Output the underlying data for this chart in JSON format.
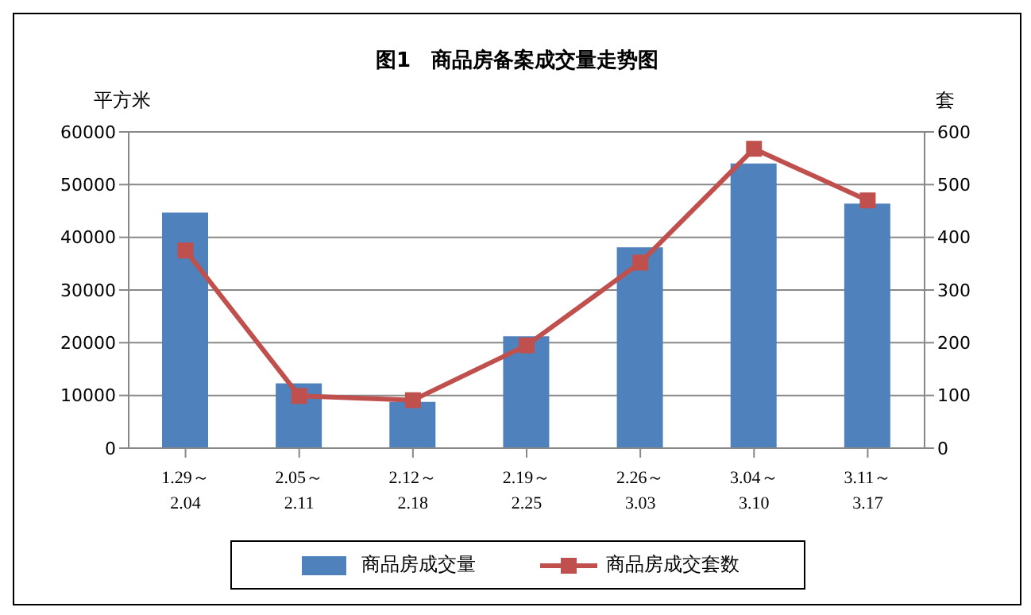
{
  "chart_data": {
    "type": "bar",
    "title": "图1　商品房备案成交量走势图",
    "ylabel": "平方米",
    "y2label": "套",
    "categories": [
      "1.29～\n2.04",
      "2.05～\n2.11",
      "2.12～\n2.18",
      "2.19～\n2.25",
      "2.26～\n3.03",
      "3.04～\n3.10",
      "3.11～\n3.17"
    ],
    "series": [
      {
        "name": "商品房成交量",
        "color": "#4f81bd",
        "values": [
          44700,
          12300,
          8800,
          21200,
          38100,
          54000,
          46400
        ]
      },
      {
        "name": "商品房成交套数",
        "type": "line",
        "axis": "y2",
        "color": "#c0504d",
        "values": [
          375,
          99,
          91,
          195,
          352,
          568,
          470
        ]
      }
    ],
    "ylim": [
      0,
      60000
    ],
    "yticks": [
      0,
      10000,
      20000,
      30000,
      40000,
      50000,
      60000
    ],
    "y2lim": [
      0,
      600
    ],
    "y2ticks": [
      0,
      100,
      200,
      300,
      400,
      500,
      600
    ],
    "grid": "y",
    "legend": "bottom",
    "marker": "square"
  }
}
